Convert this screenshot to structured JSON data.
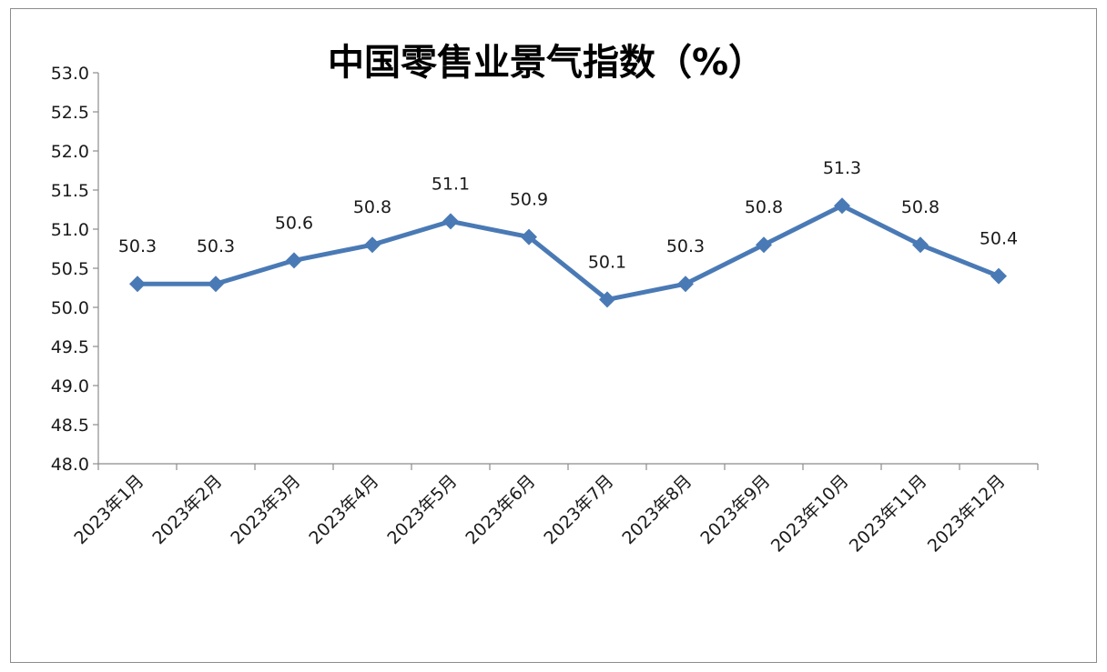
{
  "chart_data": {
    "type": "line",
    "title": "中国零售业景气指数（%）",
    "categories": [
      "2023年1月",
      "2023年2月",
      "2023年3月",
      "2023年4月",
      "2023年5月",
      "2023年6月",
      "2023年7月",
      "2023年8月",
      "2023年9月",
      "2023年10月",
      "2023年11月",
      "2023年12月"
    ],
    "series": [
      {
        "values": [
          50.3,
          50.3,
          50.6,
          50.8,
          51.1,
          50.9,
          50.1,
          50.3,
          50.8,
          51.3,
          50.8,
          50.4
        ]
      }
    ],
    "data_labels": [
      "50.3",
      "50.3",
      "50.6",
      "50.8",
      "51.1",
      "50.9",
      "50.1",
      "50.3",
      "50.8",
      "51.3",
      "50.8",
      "50.4"
    ],
    "y_ticks": [
      "48.0",
      "48.5",
      "49.0",
      "49.5",
      "50.0",
      "50.5",
      "51.0",
      "51.5",
      "52.0",
      "52.5",
      "53.0"
    ],
    "ylim": [
      48.0,
      53.0
    ],
    "xlabel": "",
    "ylabel": "",
    "grid": false,
    "marker": "diamond",
    "line_color": "#4a7ab5"
  }
}
